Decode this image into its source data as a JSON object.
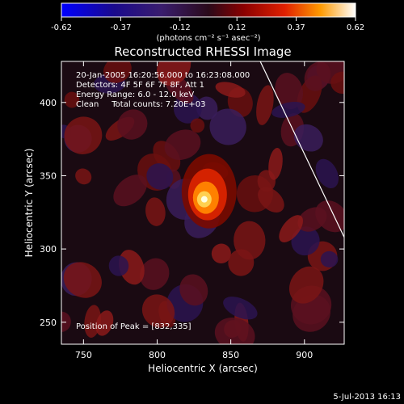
{
  "chart_data": {
    "type": "heatmap",
    "title": "Reconstructed RHESSI Image",
    "xlabel": "Heliocentric X (arcsec)",
    "ylabel": "Heliocentric Y (arcsec)",
    "xlim": [
      735,
      927
    ],
    "ylim": [
      235,
      428
    ],
    "x_ticks": [
      750,
      800,
      850,
      900
    ],
    "y_ticks": [
      250,
      300,
      350,
      400
    ],
    "colorbar": {
      "min": -0.62,
      "max": 0.62,
      "ticks": [
        "-0.62",
        "-0.37",
        "-0.12",
        "0.12",
        "0.37",
        "0.62"
      ],
      "unit_label": "(photons cm⁻² s⁻¹ asec⁻²)"
    },
    "annotations": [
      "20-Jan-2005 16:20:56.000 to 16:23:08.000",
      "Detectors: 4F 5F 6F 7F 8F, Att 1",
      "Energy Range: 6.0 - 12.0 keV",
      "Clean     Total counts: 7.20E+03"
    ],
    "peak_label": "Position of Peak = [832,335]",
    "peak": [
      832,
      335
    ],
    "limb_curve": [
      [
        870,
        428
      ],
      [
        900,
        365
      ],
      [
        927,
        308
      ]
    ]
  },
  "footer": {
    "timestamp": "5-Jul-2013 16:13"
  }
}
